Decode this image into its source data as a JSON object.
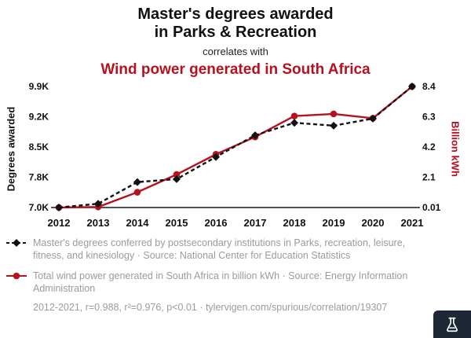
{
  "header": {
    "title_line1": "Master's degrees awarded",
    "title_line2": "in Parks & Recreation",
    "connector": "correlates with",
    "subtitle": "Wind power generated in South Africa"
  },
  "colors": {
    "red": "#b5121f",
    "black": "#111111",
    "legend_gray": "#9b9b9b",
    "badge_bg": "#1d2735"
  },
  "chart_data": {
    "type": "line",
    "x": [
      "2012",
      "2013",
      "2014",
      "2015",
      "2016",
      "2017",
      "2018",
      "2019",
      "2020",
      "2021"
    ],
    "series": [
      {
        "name": "Master's degrees awarded in Parks & Recreation",
        "axis": "left",
        "color": "#111111",
        "style": "dashed",
        "marker": "diamond",
        "values": [
          7000,
          7090,
          7610,
          7680,
          8210,
          8730,
          9030,
          8960,
          9130,
          9900
        ]
      },
      {
        "name": "Wind power generated in South Africa",
        "axis": "right",
        "color": "#b5121f",
        "style": "solid",
        "marker": "circle",
        "values": [
          0.01,
          0.05,
          1.07,
          2.3,
          3.7,
          4.9,
          6.35,
          6.5,
          6.2,
          8.4
        ]
      }
    ],
    "left_axis": {
      "label": "Degrees awarded",
      "ticks": [
        "7.0K",
        "7.8K",
        "8.5K",
        "9.2K",
        "9.9K"
      ],
      "range": [
        7000,
        9900
      ]
    },
    "right_axis": {
      "label": "Billion kWh",
      "ticks": [
        "0.01",
        "2.1",
        "4.2",
        "6.3",
        "8.4"
      ],
      "range": [
        0.01,
        8.4
      ]
    },
    "grid": false,
    "legend_position": "bottom"
  },
  "legend": {
    "series1": "Master's degrees conferred by postsecondary institutions in Parks, recreation, leisure, fitness, and kinesiology · Source: National Center for Education Statistics",
    "series2": "Total wind power generated in South Africa in billion kWh · Source: Energy Information Administration",
    "stats": "2012-2021, r=0.988, r²=0.976, p<0.01 · tylervigen.com/spurious/correlation/19307"
  },
  "badge": {
    "icon": "flask-icon"
  }
}
